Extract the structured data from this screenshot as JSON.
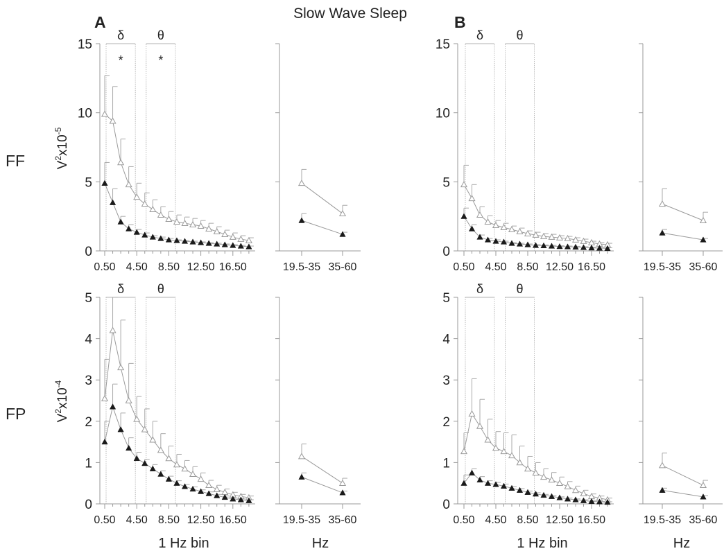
{
  "figure_title": "Slow  Wave  Sleep",
  "column_labels": [
    "A",
    "B"
  ],
  "row_labels": [
    "FF",
    "FP"
  ],
  "row_ylabels": [
    {
      "base": "V",
      "sup1": "2",
      "mid": "x10",
      "sup2": "-5"
    },
    {
      "base": "V",
      "sup1": "2",
      "mid": "x10",
      "sup2": "-4"
    }
  ],
  "xlabel_main": "1 Hz bin",
  "xlabel_side": "Hz",
  "band_labels": {
    "delta": "δ",
    "theta": "θ"
  },
  "significance_marker": "*",
  "chart_data": [
    {
      "id": "A-FF-main",
      "type": "line",
      "panel": "A",
      "row": "FF",
      "x_ticks": [
        "0.50",
        "4.50",
        "8.50",
        "12.50",
        "16.50"
      ],
      "ylim": [
        0,
        15
      ],
      "y_ticks": [
        0,
        5,
        10,
        15
      ],
      "bands": [
        {
          "label": "δ",
          "from_bin": 0,
          "to_bin": 4,
          "significant": true
        },
        {
          "label": "θ",
          "from_bin": 5,
          "to_bin": 9,
          "significant": true
        }
      ],
      "series": [
        {
          "style": "open",
          "values": [
            9.9,
            9.4,
            6.4,
            4.8,
            3.9,
            3.4,
            3.0,
            2.6,
            2.3,
            2.1,
            2.0,
            1.9,
            1.8,
            1.6,
            1.4,
            1.2,
            1.0,
            0.85,
            0.75
          ],
          "errors": [
            2.8,
            2.5,
            1.7,
            1.3,
            1.0,
            0.8,
            0.7,
            0.6,
            0.55,
            0.5,
            0.45,
            0.45,
            0.4,
            0.4,
            0.35,
            0.3,
            0.3,
            0.25,
            0.2
          ]
        },
        {
          "style": "filled",
          "values": [
            4.9,
            3.5,
            2.1,
            1.6,
            1.35,
            1.15,
            1.0,
            0.9,
            0.8,
            0.75,
            0.7,
            0.65,
            0.6,
            0.55,
            0.5,
            0.45,
            0.4,
            0.35,
            0.3
          ],
          "errors": [
            1.5,
            1.0,
            0.4,
            0.3,
            0.2,
            0.15,
            0.1,
            0.1,
            0.1,
            0.05,
            0.05,
            0.05,
            0.05,
            0.05,
            0.05,
            0.05,
            0.05,
            0.05,
            0.05
          ]
        }
      ]
    },
    {
      "id": "A-FF-side",
      "type": "line",
      "panel": "A",
      "row": "FF",
      "categories": [
        "19.5-35",
        "35-60"
      ],
      "ylim": [
        0,
        15
      ],
      "series": [
        {
          "style": "open",
          "values": [
            4.9,
            2.7
          ],
          "errors": [
            1.0,
            0.6
          ]
        },
        {
          "style": "filled",
          "values": [
            2.2,
            1.2
          ],
          "errors": [
            0.5,
            0.15
          ]
        }
      ]
    },
    {
      "id": "B-FF-main",
      "type": "line",
      "panel": "B",
      "row": "FF",
      "x_ticks": [
        "0.50",
        "4.50",
        "8.50",
        "12.50",
        "16.50"
      ],
      "ylim": [
        0,
        15
      ],
      "y_ticks": [
        0,
        5,
        10,
        15
      ],
      "bands": [
        {
          "label": "δ",
          "from_bin": 0,
          "to_bin": 4,
          "significant": false
        },
        {
          "label": "θ",
          "from_bin": 5,
          "to_bin": 9,
          "significant": false
        }
      ],
      "series": [
        {
          "style": "open",
          "values": [
            4.8,
            3.8,
            2.6,
            2.1,
            1.85,
            1.7,
            1.55,
            1.4,
            1.25,
            1.15,
            1.05,
            1.0,
            0.95,
            0.9,
            0.8,
            0.7,
            0.6,
            0.5,
            0.45
          ],
          "errors": [
            1.4,
            1.0,
            0.6,
            0.45,
            0.35,
            0.3,
            0.25,
            0.25,
            0.2,
            0.2,
            0.2,
            0.2,
            0.15,
            0.15,
            0.15,
            0.15,
            0.1,
            0.1,
            0.1
          ]
        },
        {
          "style": "filled",
          "values": [
            2.5,
            1.6,
            1.0,
            0.8,
            0.7,
            0.65,
            0.55,
            0.5,
            0.45,
            0.4,
            0.38,
            0.35,
            0.32,
            0.3,
            0.28,
            0.25,
            0.22,
            0.2,
            0.18
          ],
          "errors": [
            0.6,
            0.3,
            0.15,
            0.1,
            0.1,
            0.05,
            0.05,
            0.05,
            0.05,
            0.05,
            0.05,
            0.05,
            0.05,
            0.05,
            0.05,
            0.05,
            0.05,
            0.05,
            0.05
          ]
        }
      ]
    },
    {
      "id": "B-FF-side",
      "type": "line",
      "panel": "B",
      "row": "FF",
      "categories": [
        "19.5-35",
        "35-60"
      ],
      "ylim": [
        0,
        15
      ],
      "series": [
        {
          "style": "open",
          "values": [
            3.4,
            2.2
          ],
          "errors": [
            1.1,
            0.6
          ]
        },
        {
          "style": "filled",
          "values": [
            1.3,
            0.8
          ],
          "errors": [
            0.25,
            0.1
          ]
        }
      ]
    },
    {
      "id": "A-FP-main",
      "type": "line",
      "panel": "A",
      "row": "FP",
      "x_ticks": [
        "0.50",
        "4.50",
        "8.50",
        "12.50",
        "16.50"
      ],
      "ylim": [
        0,
        5
      ],
      "y_ticks": [
        0,
        1,
        2,
        3,
        4,
        5
      ],
      "bands": [
        {
          "label": "δ",
          "from_bin": 0,
          "to_bin": 4,
          "significant": false
        },
        {
          "label": "θ",
          "from_bin": 5,
          "to_bin": 9,
          "significant": false
        }
      ],
      "series": [
        {
          "style": "open",
          "values": [
            2.55,
            4.2,
            3.3,
            2.5,
            2.05,
            1.8,
            1.55,
            1.3,
            1.1,
            0.95,
            0.85,
            0.72,
            0.6,
            0.45,
            0.35,
            0.28,
            0.22,
            0.18,
            0.15
          ],
          "errors": [
            0.95,
            0.8,
            1.15,
            0.9,
            0.55,
            0.5,
            0.45,
            0.4,
            0.3,
            0.25,
            0.2,
            0.18,
            0.15,
            0.12,
            0.1,
            0.08,
            0.06,
            0.05,
            0.04
          ]
        },
        {
          "style": "filled",
          "values": [
            1.5,
            2.35,
            1.8,
            1.35,
            1.1,
            0.98,
            0.85,
            0.72,
            0.6,
            0.5,
            0.42,
            0.36,
            0.3,
            0.25,
            0.2,
            0.16,
            0.12,
            0.1,
            0.08
          ],
          "errors": [
            0.5,
            0.55,
            0.4,
            0.25,
            0.15,
            0.1,
            0.1,
            0.08,
            0.07,
            0.06,
            0.05,
            0.05,
            0.04,
            0.04,
            0.03,
            0.03,
            0.02,
            0.02,
            0.02
          ]
        }
      ]
    },
    {
      "id": "A-FP-side",
      "type": "line",
      "panel": "A",
      "row": "FP",
      "categories": [
        "19.5-35",
        "35-60"
      ],
      "ylim": [
        0,
        5
      ],
      "series": [
        {
          "style": "open",
          "values": [
            1.15,
            0.5
          ],
          "errors": [
            0.3,
            0.12
          ]
        },
        {
          "style": "filled",
          "values": [
            0.65,
            0.27
          ],
          "errors": [
            0.1,
            0.04
          ]
        }
      ]
    },
    {
      "id": "B-FP-main",
      "type": "line",
      "panel": "B",
      "row": "FP",
      "x_ticks": [
        "0.50",
        "4.50",
        "8.50",
        "12.50",
        "16.50"
      ],
      "ylim": [
        0,
        5
      ],
      "y_ticks": [
        0,
        1,
        2,
        3,
        4,
        5
      ],
      "bands": [
        {
          "label": "δ",
          "from_bin": 0,
          "to_bin": 4,
          "significant": false
        },
        {
          "label": "θ",
          "from_bin": 5,
          "to_bin": 9,
          "significant": false
        }
      ],
      "series": [
        {
          "style": "open",
          "values": [
            1.27,
            2.18,
            1.88,
            1.55,
            1.35,
            1.27,
            1.17,
            1.0,
            0.85,
            0.75,
            0.65,
            0.58,
            0.5,
            0.42,
            0.33,
            0.25,
            0.18,
            0.14,
            0.1
          ],
          "errors": [
            0.45,
            0.85,
            0.65,
            0.5,
            0.4,
            0.45,
            0.5,
            0.4,
            0.3,
            0.25,
            0.2,
            0.18,
            0.15,
            0.12,
            0.1,
            0.08,
            0.06,
            0.05,
            0.04
          ]
        },
        {
          "style": "filled",
          "values": [
            0.5,
            0.75,
            0.58,
            0.5,
            0.47,
            0.43,
            0.38,
            0.33,
            0.28,
            0.24,
            0.21,
            0.18,
            0.15,
            0.12,
            0.1,
            0.08,
            0.06,
            0.05,
            0.04
          ],
          "errors": [
            0.2,
            0.1,
            0.08,
            0.06,
            0.05,
            0.05,
            0.04,
            0.04,
            0.03,
            0.03,
            0.02,
            0.02,
            0.02,
            0.02,
            0.02,
            0.02,
            0.02,
            0.01,
            0.01
          ]
        }
      ]
    },
    {
      "id": "B-FP-side",
      "type": "line",
      "panel": "B",
      "row": "FP",
      "categories": [
        "19.5-35",
        "35-60"
      ],
      "ylim": [
        0,
        5
      ],
      "series": [
        {
          "style": "open",
          "values": [
            0.93,
            0.45
          ],
          "errors": [
            0.3,
            0.12
          ]
        },
        {
          "style": "filled",
          "values": [
            0.33,
            0.17
          ],
          "errors": [
            0.05,
            0.03
          ]
        }
      ]
    }
  ]
}
